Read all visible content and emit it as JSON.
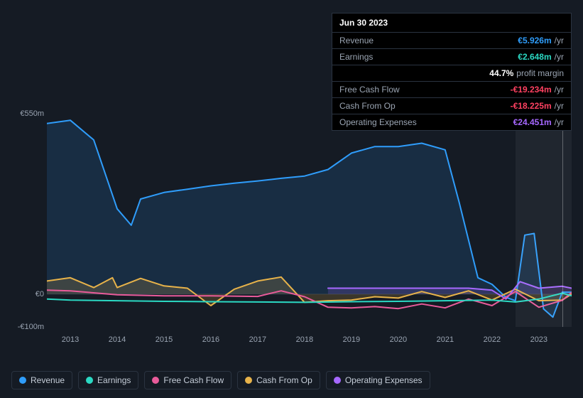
{
  "tooltip": {
    "date": "Jun 30 2023",
    "rows": [
      {
        "label": "Revenue",
        "value": "€5.926m",
        "suffix": "/yr",
        "color": "#2f9dfb"
      },
      {
        "label": "Earnings",
        "value": "€2.648m",
        "suffix": "/yr",
        "color": "#2bd9c3"
      },
      {
        "label": "",
        "value": "44.7%",
        "suffix": "profit margin",
        "color": "#ffffff"
      },
      {
        "label": "Free Cash Flow",
        "value": "-€19.234m",
        "suffix": "/yr",
        "color": "#ff4161"
      },
      {
        "label": "Cash From Op",
        "value": "-€18.225m",
        "suffix": "/yr",
        "color": "#ff4161"
      },
      {
        "label": "Operating Expenses",
        "value": "€24.451m",
        "suffix": "/yr",
        "color": "#a668ff"
      }
    ]
  },
  "chart": {
    "type": "line",
    "background": "#151b24",
    "plot_bg": "#1a2230",
    "grid_color": "#2a3340",
    "text_color": "#9aa4b2",
    "y": {
      "label_neg": "-€100m",
      "label_zero": "€0",
      "label_max": "€550m",
      "min": -100,
      "max": 550,
      "tick_color": "#9aa4b2"
    },
    "x": {
      "years": [
        "2013",
        "2014",
        "2015",
        "2016",
        "2017",
        "2018",
        "2019",
        "2020",
        "2021",
        "2022",
        "2023"
      ],
      "min": 2012.5,
      "max": 2023.7
    },
    "highlight_x": 2023.5,
    "highlight_band": {
      "from": 2022.5,
      "to": 2023.7
    },
    "series": {
      "revenue": {
        "color": "#2f9dfb",
        "width": 2,
        "fill": "rgba(47,157,251,0.15)",
        "points": [
          [
            2012.5,
            520
          ],
          [
            2013,
            530
          ],
          [
            2013.5,
            470
          ],
          [
            2014,
            260
          ],
          [
            2014.3,
            210
          ],
          [
            2014.5,
            290
          ],
          [
            2015,
            310
          ],
          [
            2015.5,
            320
          ],
          [
            2016,
            330
          ],
          [
            2016.5,
            338
          ],
          [
            2017,
            345
          ],
          [
            2017.5,
            353
          ],
          [
            2018,
            360
          ],
          [
            2018.5,
            380
          ],
          [
            2019,
            430
          ],
          [
            2019.5,
            450
          ],
          [
            2020,
            450
          ],
          [
            2020.5,
            460
          ],
          [
            2021,
            440
          ],
          [
            2021.3,
            280
          ],
          [
            2021.7,
            50
          ],
          [
            2022,
            30
          ],
          [
            2022.3,
            -10
          ],
          [
            2022.5,
            -20
          ],
          [
            2022.7,
            180
          ],
          [
            2022.9,
            185
          ],
          [
            2023.1,
            -45
          ],
          [
            2023.3,
            -70
          ],
          [
            2023.5,
            6
          ],
          [
            2023.7,
            6
          ]
        ]
      },
      "earnings": {
        "color": "#2bd9c3",
        "width": 2,
        "points": [
          [
            2012.5,
            -15
          ],
          [
            2013,
            -18
          ],
          [
            2014,
            -20
          ],
          [
            2015,
            -22
          ],
          [
            2016,
            -23
          ],
          [
            2017,
            -24
          ],
          [
            2018,
            -25
          ],
          [
            2019,
            -23
          ],
          [
            2020,
            -22
          ],
          [
            2021,
            -20
          ],
          [
            2022,
            -18
          ],
          [
            2022.5,
            -24
          ],
          [
            2023,
            -15
          ],
          [
            2023.5,
            3
          ],
          [
            2023.7,
            -5
          ]
        ]
      },
      "fcf": {
        "color": "#e95b9a",
        "width": 2,
        "points": [
          [
            2012.5,
            12
          ],
          [
            2013,
            10
          ],
          [
            2014,
            -2
          ],
          [
            2015,
            -5
          ],
          [
            2016,
            -5
          ],
          [
            2017,
            -7
          ],
          [
            2017.5,
            10
          ],
          [
            2018,
            -8
          ],
          [
            2018.5,
            -40
          ],
          [
            2019,
            -42
          ],
          [
            2019.5,
            -38
          ],
          [
            2020,
            -44
          ],
          [
            2020.5,
            -30
          ],
          [
            2021,
            -42
          ],
          [
            2021.5,
            -15
          ],
          [
            2022,
            -35
          ],
          [
            2022.5,
            8
          ],
          [
            2023,
            -40
          ],
          [
            2023.5,
            -19
          ],
          [
            2023.7,
            5
          ]
        ]
      },
      "cfo": {
        "color": "#e8b34a",
        "width": 2,
        "fill": "rgba(232,179,74,0.18)",
        "points": [
          [
            2012.5,
            40
          ],
          [
            2013,
            50
          ],
          [
            2013.5,
            20
          ],
          [
            2013.9,
            50
          ],
          [
            2014,
            20
          ],
          [
            2014.5,
            48
          ],
          [
            2015,
            25
          ],
          [
            2015.5,
            18
          ],
          [
            2016,
            -35
          ],
          [
            2016.5,
            15
          ],
          [
            2017,
            40
          ],
          [
            2017.5,
            52
          ],
          [
            2018,
            -25
          ],
          [
            2018.5,
            -20
          ],
          [
            2019,
            -18
          ],
          [
            2019.5,
            -8
          ],
          [
            2020,
            -12
          ],
          [
            2020.5,
            8
          ],
          [
            2021,
            -10
          ],
          [
            2021.5,
            10
          ],
          [
            2022,
            -18
          ],
          [
            2022.5,
            15
          ],
          [
            2023,
            -20
          ],
          [
            2023.5,
            -18
          ],
          [
            2023.7,
            0
          ]
        ]
      },
      "opex": {
        "color": "#a668ff",
        "width": 2,
        "fill": "rgba(166,104,255,0.18)",
        "points": [
          [
            2018.5,
            18
          ],
          [
            2019,
            18
          ],
          [
            2020,
            18
          ],
          [
            2021,
            18
          ],
          [
            2021.5,
            18
          ],
          [
            2022,
            12
          ],
          [
            2022.3,
            -15
          ],
          [
            2022.6,
            38
          ],
          [
            2023,
            18
          ],
          [
            2023.5,
            24
          ],
          [
            2023.7,
            18
          ]
        ]
      }
    },
    "legend": [
      {
        "key": "revenue",
        "label": "Revenue",
        "color": "#2f9dfb"
      },
      {
        "key": "earnings",
        "label": "Earnings",
        "color": "#2bd9c3"
      },
      {
        "key": "fcf",
        "label": "Free Cash Flow",
        "color": "#e95b9a"
      },
      {
        "key": "cfo",
        "label": "Cash From Op",
        "color": "#e8b34a"
      },
      {
        "key": "opex",
        "label": "Operating Expenses",
        "color": "#a668ff"
      }
    ]
  }
}
